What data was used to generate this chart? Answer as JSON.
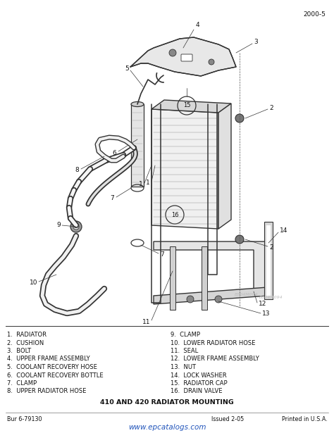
{
  "page_number": "2000-5",
  "title": "410 AND 420 RADIATOR MOUNTING",
  "bur": "Bur 6-79130",
  "issued": "Issued 2-05",
  "printed": "Printed in U.S.A.",
  "website": "www.epcatalogs.com",
  "watermark1": "B304M094",
  "watermark2": "B304M094",
  "bg_color": "#ffffff",
  "text_color": "#111111",
  "label_color": "#222222",
  "parts_left": [
    "1.  RADIATOR",
    "2.  CUSHION",
    "3.  BOLT",
    "4.  UPPER FRAME ASSEMBLY",
    "5.  COOLANT RECOVERY HOSE",
    "6.  COOLANT RECOVERY BOTTLE",
    "7.  CLAMP",
    "8.  UPPER RADIATOR HOSE"
  ],
  "parts_right": [
    "9.  CLAMP",
    "10.  LOWER RADIATOR HOSE",
    "11.  SEAL",
    "12.  LOWER FRAME ASSEMBLY",
    "13.  NUT",
    "14.  LOCK WASHER",
    "15.  RADIATOR CAP",
    "16.  DRAIN VALVE"
  ],
  "diagram": {
    "line_color": "#333333",
    "line_width": 0.9,
    "thin_line": 0.5,
    "thick_line": 1.4
  }
}
